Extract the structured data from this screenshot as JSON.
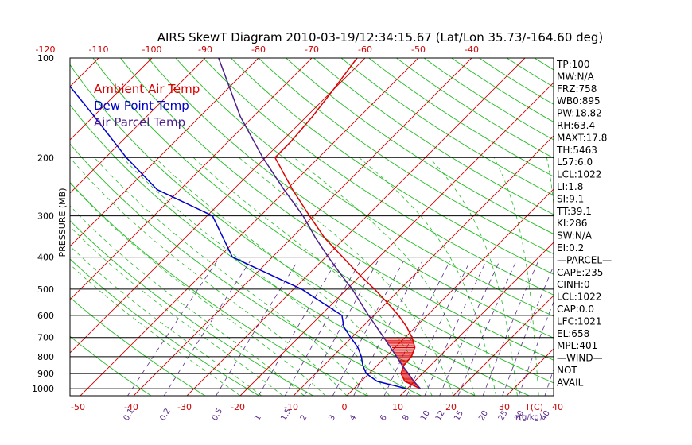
{
  "chart_data": {
    "type": "line",
    "title": "AIRS SkewT Diagram 2010-03-19/12:34:15.67 (Lat/Lon 35.73/-164.60 deg)",
    "ylabel": "PRESSURE (MB)",
    "x_unit_label": "T(C)",
    "mixing_unit_label": "r(g/kg)",
    "pressure_ticks": [
      100,
      200,
      300,
      400,
      500,
      600,
      700,
      800,
      900,
      1000
    ],
    "top_temp_ticks": [
      -120,
      -110,
      -100,
      -90,
      -80,
      -70,
      -60,
      -50,
      -40
    ],
    "bottom_temp_ticks": [
      -50,
      -40,
      -30,
      -20,
      -10,
      0,
      10,
      20,
      30,
      40
    ],
    "mixing_ratio_labels": [
      "0.1",
      "0.2",
      "0.5",
      "1",
      "1.5",
      "2",
      "3",
      "4",
      "6",
      "8",
      "10",
      "12",
      "15",
      "20",
      "25",
      "30",
      "40"
    ],
    "legend": [
      {
        "label": "Ambient Air Temp",
        "color": "#dd0000"
      },
      {
        "label": "Dew Point Temp",
        "color": "#0000cc"
      },
      {
        "label": "Air Parcel Temp",
        "color": "#4b1e8c"
      }
    ],
    "series": [
      {
        "name": "Ambient Air Temp",
        "color": "#dd0000",
        "points": [
          [
            1000,
            12.5
          ],
          [
            950,
            8.2
          ],
          [
            900,
            6.0
          ],
          [
            850,
            5.0
          ],
          [
            800,
            4.8
          ],
          [
            750,
            3.7
          ],
          [
            700,
            1.3
          ],
          [
            650,
            -1.7
          ],
          [
            600,
            -5.4
          ],
          [
            550,
            -9.8
          ],
          [
            500,
            -14.8
          ],
          [
            450,
            -20.6
          ],
          [
            400,
            -26.8
          ],
          [
            350,
            -33.8
          ],
          [
            300,
            -40.8
          ],
          [
            250,
            -48.9
          ],
          [
            200,
            -58.2
          ],
          [
            180,
            -58.2
          ],
          [
            150,
            -58.9
          ],
          [
            125,
            -60.0
          ],
          [
            100,
            -61.5
          ]
        ]
      },
      {
        "name": "Dew Point Temp",
        "color": "#0000cc",
        "points": [
          [
            1000,
            10.0
          ],
          [
            950,
            3.0
          ],
          [
            900,
            -0.5
          ],
          [
            850,
            -2.7
          ],
          [
            800,
            -4.6
          ],
          [
            750,
            -7.0
          ],
          [
            700,
            -10.2
          ],
          [
            650,
            -13.5
          ],
          [
            600,
            -16.0
          ],
          [
            500,
            -28.5
          ],
          [
            400,
            -47.5
          ],
          [
            300,
            -59.0
          ],
          [
            250,
            -74.3
          ],
          [
            200,
            -86.1
          ],
          [
            150,
            -99.9
          ],
          [
            125,
            -108.8
          ],
          [
            100,
            -119.4
          ]
        ]
      },
      {
        "name": "Air Parcel Temp",
        "color": "#4b1e8c",
        "points": [
          [
            1000,
            12.5
          ],
          [
            950,
            9.9
          ],
          [
            900,
            7.4
          ],
          [
            850,
            4.7
          ],
          [
            800,
            2.0
          ],
          [
            700,
            -4.0
          ],
          [
            600,
            -11.0
          ],
          [
            500,
            -19.0
          ],
          [
            450,
            -24.0
          ],
          [
            400,
            -29.5
          ],
          [
            350,
            -35.5
          ],
          [
            300,
            -42.0
          ],
          [
            250,
            -50.5
          ],
          [
            200,
            -60.5
          ],
          [
            150,
            -72.5
          ],
          [
            100,
            -87.5
          ]
        ]
      }
    ],
    "cape_shading": {
      "color": "#dd0000",
      "points": [
        [
          1000,
          12.5
        ],
        [
          950,
          9.9
        ],
        [
          900,
          7.4
        ],
        [
          850,
          4.7
        ],
        [
          800,
          2.0
        ],
        [
          750,
          -0.6
        ],
        [
          700,
          -4.0
        ]
      ]
    }
  },
  "stats": [
    "TP:100",
    "MW:N/A",
    "FRZ:758",
    "WB0:895",
    "PW:18.82",
    "RH:63.4",
    "MAXT:17.8",
    "TH:5463",
    "L57:6.0",
    "LCL:1022",
    "LI:1.8",
    "SI:9.1",
    "TT:39.1",
    "KI:286",
    "SW:N/A",
    "EI:0.2",
    "—PARCEL—",
    "CAPE:235",
    "CINH:0",
    "LCL:1022",
    "CAP:0.0",
    "LFC:1021",
    "EL:658",
    "MPL:401",
    "—WIND—",
    "NOT",
    "AVAIL"
  ]
}
